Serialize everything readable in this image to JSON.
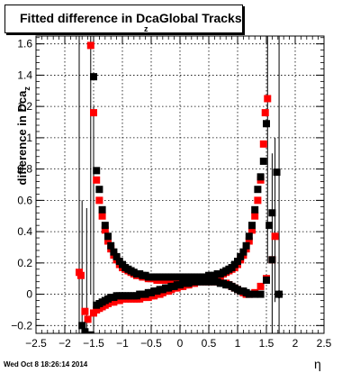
{
  "chart_data": {
    "type": "scatter",
    "title": "Fitted difference in Dca",
    "title_subscript": "z",
    "title_suffix": "Global Tracks",
    "ylabel": "difference in Dca",
    "ylabel_subscript": "z",
    "xlabel": "η",
    "xlim": [
      -2.5,
      2.5
    ],
    "ylim": [
      -0.25,
      1.65
    ],
    "grid": true,
    "x_ticks": [
      "−2.5",
      "−2",
      "−1.5",
      "−1",
      "−0.5",
      "0",
      "0.5",
      "1",
      "1.5",
      "2",
      "2.5"
    ],
    "y_ticks": [
      "−0.2",
      "0",
      "0.2",
      "0.4",
      "0.6",
      "0.8",
      "1",
      "1.2",
      "1.4",
      "1.6"
    ],
    "series": [
      {
        "color": "#ff0000",
        "marker": "square",
        "points": [
          [
            -1.75,
            0.14
          ],
          [
            -1.72,
            0.12
          ],
          [
            -1.65,
            -0.11
          ],
          [
            -1.6,
            -0.16
          ],
          [
            -1.55,
            1.59
          ],
          [
            -1.5,
            1.16
          ],
          [
            -1.45,
            0.73
          ],
          [
            -1.4,
            0.6
          ],
          [
            -1.35,
            0.5
          ],
          [
            -1.3,
            0.41
          ],
          [
            -1.25,
            0.34
          ],
          [
            -1.2,
            0.29
          ],
          [
            -1.15,
            0.25
          ],
          [
            -1.1,
            0.22
          ],
          [
            -1.05,
            0.19
          ],
          [
            -1.0,
            0.17
          ],
          [
            -0.95,
            0.16
          ],
          [
            -0.9,
            0.15
          ],
          [
            -0.85,
            0.14
          ],
          [
            -0.8,
            0.13
          ],
          [
            -0.75,
            0.12
          ],
          [
            -0.7,
            0.12
          ],
          [
            -0.65,
            0.11
          ],
          [
            -0.6,
            0.11
          ],
          [
            -0.55,
            0.1
          ],
          [
            -0.5,
            0.1
          ],
          [
            -0.45,
            0.1
          ],
          [
            -0.4,
            0.09
          ],
          [
            -0.35,
            0.09
          ],
          [
            -0.3,
            0.09
          ],
          [
            -0.25,
            0.09
          ],
          [
            -0.2,
            0.09
          ],
          [
            -0.15,
            0.09
          ],
          [
            -0.1,
            0.09
          ],
          [
            -0.05,
            0.09
          ],
          [
            0.0,
            0.09
          ],
          [
            0.05,
            0.09
          ],
          [
            0.1,
            0.09
          ],
          [
            0.15,
            0.09
          ],
          [
            0.2,
            0.09
          ],
          [
            0.25,
            0.09
          ],
          [
            0.3,
            0.09
          ],
          [
            0.35,
            0.09
          ],
          [
            0.4,
            0.09
          ],
          [
            0.45,
            0.09
          ],
          [
            0.5,
            0.1
          ],
          [
            0.55,
            0.1
          ],
          [
            0.6,
            0.11
          ],
          [
            0.65,
            0.11
          ],
          [
            0.7,
            0.12
          ],
          [
            0.75,
            0.13
          ],
          [
            0.8,
            0.14
          ],
          [
            0.85,
            0.15
          ],
          [
            0.9,
            0.16
          ],
          [
            0.95,
            0.17
          ],
          [
            1.0,
            0.19
          ],
          [
            1.05,
            0.22
          ],
          [
            1.1,
            0.25
          ],
          [
            1.15,
            0.29
          ],
          [
            1.2,
            0.34
          ],
          [
            1.25,
            0.41
          ],
          [
            1.3,
            0.5
          ],
          [
            1.35,
            0.6
          ],
          [
            1.4,
            0.73
          ],
          [
            1.45,
            0.96
          ],
          [
            1.48,
            1.16
          ],
          [
            1.52,
            1.25
          ],
          [
            -1.5,
            -0.12
          ],
          [
            -1.45,
            -0.1
          ],
          [
            -1.4,
            -0.09
          ],
          [
            -1.35,
            -0.08
          ],
          [
            -1.3,
            -0.07
          ],
          [
            -1.25,
            -0.06
          ],
          [
            -1.2,
            -0.05
          ],
          [
            -1.15,
            -0.05
          ],
          [
            -1.1,
            -0.04
          ],
          [
            -1.05,
            -0.04
          ],
          [
            -1.0,
            -0.03
          ],
          [
            -0.95,
            -0.03
          ],
          [
            -0.9,
            -0.03
          ],
          [
            -0.85,
            -0.03
          ],
          [
            -0.8,
            -0.03
          ],
          [
            -0.75,
            -0.03
          ],
          [
            -0.7,
            -0.03
          ],
          [
            -0.65,
            -0.02
          ],
          [
            -0.6,
            -0.02
          ],
          [
            -0.55,
            -0.02
          ],
          [
            -0.5,
            -0.01
          ],
          [
            -0.45,
            -0.01
          ],
          [
            -0.4,
            0.0
          ],
          [
            -0.35,
            0.0
          ],
          [
            -0.3,
            0.01
          ],
          [
            -0.25,
            0.02
          ],
          [
            -0.2,
            0.02
          ],
          [
            -0.15,
            0.03
          ],
          [
            -0.1,
            0.04
          ],
          [
            -0.05,
            0.04
          ],
          [
            0.0,
            0.05
          ],
          [
            0.05,
            0.05
          ],
          [
            0.1,
            0.06
          ],
          [
            0.15,
            0.06
          ],
          [
            0.2,
            0.07
          ],
          [
            0.25,
            0.07
          ],
          [
            0.3,
            0.08
          ],
          [
            0.35,
            0.08
          ],
          [
            0.4,
            0.08
          ],
          [
            0.45,
            0.08
          ],
          [
            0.5,
            0.08
          ],
          [
            0.55,
            0.08
          ],
          [
            0.6,
            0.08
          ],
          [
            0.65,
            0.08
          ],
          [
            0.7,
            0.08
          ],
          [
            0.75,
            0.07
          ],
          [
            0.8,
            0.07
          ],
          [
            0.85,
            0.06
          ],
          [
            0.9,
            0.05
          ],
          [
            0.95,
            0.04
          ],
          [
            1.0,
            0.03
          ],
          [
            1.05,
            0.02
          ],
          [
            1.1,
            0.01
          ],
          [
            1.15,
            0.0
          ],
          [
            1.2,
            0.0
          ],
          [
            1.3,
            0.01
          ],
          [
            1.4,
            0.05
          ],
          [
            1.5,
            0.1
          ],
          [
            1.6,
            0.22
          ],
          [
            1.65,
            0.37
          ]
        ]
      },
      {
        "color": "#000000",
        "marker": "square",
        "points": [
          [
            -1.7,
            -0.2
          ],
          [
            -1.65,
            -0.24
          ],
          [
            -1.55,
            -0.26
          ],
          [
            -1.5,
            1.39
          ],
          [
            -1.45,
            0.79
          ],
          [
            -1.4,
            0.67
          ],
          [
            -1.35,
            0.54
          ],
          [
            -1.3,
            0.44
          ],
          [
            -1.25,
            0.37
          ],
          [
            -1.2,
            0.31
          ],
          [
            -1.15,
            0.27
          ],
          [
            -1.1,
            0.24
          ],
          [
            -1.05,
            0.21
          ],
          [
            -1.0,
            0.19
          ],
          [
            -0.95,
            0.17
          ],
          [
            -0.9,
            0.16
          ],
          [
            -0.85,
            0.15
          ],
          [
            -0.8,
            0.14
          ],
          [
            -0.75,
            0.13
          ],
          [
            -0.7,
            0.13
          ],
          [
            -0.65,
            0.12
          ],
          [
            -0.6,
            0.12
          ],
          [
            -0.55,
            0.11
          ],
          [
            -0.5,
            0.11
          ],
          [
            -0.45,
            0.11
          ],
          [
            -0.4,
            0.11
          ],
          [
            -0.35,
            0.11
          ],
          [
            -0.3,
            0.11
          ],
          [
            -0.25,
            0.11
          ],
          [
            -0.2,
            0.11
          ],
          [
            -0.15,
            0.11
          ],
          [
            -0.1,
            0.11
          ],
          [
            -0.05,
            0.11
          ],
          [
            0.0,
            0.11
          ],
          [
            0.05,
            0.11
          ],
          [
            0.1,
            0.11
          ],
          [
            0.15,
            0.11
          ],
          [
            0.2,
            0.11
          ],
          [
            0.25,
            0.11
          ],
          [
            0.3,
            0.11
          ],
          [
            0.35,
            0.11
          ],
          [
            0.4,
            0.11
          ],
          [
            0.45,
            0.11
          ],
          [
            0.5,
            0.12
          ],
          [
            0.55,
            0.12
          ],
          [
            0.6,
            0.12
          ],
          [
            0.65,
            0.13
          ],
          [
            0.7,
            0.13
          ],
          [
            0.75,
            0.14
          ],
          [
            0.8,
            0.15
          ],
          [
            0.85,
            0.16
          ],
          [
            0.9,
            0.17
          ],
          [
            0.95,
            0.19
          ],
          [
            1.0,
            0.21
          ],
          [
            1.05,
            0.24
          ],
          [
            1.1,
            0.27
          ],
          [
            1.15,
            0.31
          ],
          [
            1.2,
            0.37
          ],
          [
            1.25,
            0.44
          ],
          [
            1.3,
            0.54
          ],
          [
            1.35,
            0.67
          ],
          [
            1.4,
            0.75
          ],
          [
            1.45,
            0.85
          ],
          [
            1.5,
            1.09
          ],
          [
            1.55,
            0.44
          ],
          [
            1.6,
            0.52
          ],
          [
            1.68,
            0.78
          ],
          [
            -1.45,
            -0.07
          ],
          [
            -1.4,
            -0.06
          ],
          [
            -1.35,
            -0.05
          ],
          [
            -1.3,
            -0.04
          ],
          [
            -1.25,
            -0.03
          ],
          [
            -1.2,
            -0.02
          ],
          [
            -1.15,
            -0.02
          ],
          [
            -1.1,
            -0.01
          ],
          [
            -1.05,
            -0.01
          ],
          [
            -1.0,
            -0.01
          ],
          [
            -0.95,
            -0.01
          ],
          [
            -0.9,
            -0.01
          ],
          [
            -0.85,
            -0.01
          ],
          [
            -0.8,
            -0.01
          ],
          [
            -0.75,
            -0.01
          ],
          [
            -0.7,
            0.0
          ],
          [
            -0.65,
            0.0
          ],
          [
            -0.6,
            0.0
          ],
          [
            -0.55,
            0.01
          ],
          [
            -0.5,
            0.01
          ],
          [
            -0.45,
            0.02
          ],
          [
            -0.4,
            0.02
          ],
          [
            -0.35,
            0.03
          ],
          [
            -0.3,
            0.03
          ],
          [
            -0.25,
            0.04
          ],
          [
            -0.2,
            0.04
          ],
          [
            -0.15,
            0.05
          ],
          [
            -0.1,
            0.05
          ],
          [
            -0.05,
            0.06
          ],
          [
            0.0,
            0.06
          ],
          [
            0.05,
            0.07
          ],
          [
            0.1,
            0.07
          ],
          [
            0.15,
            0.07
          ],
          [
            0.2,
            0.08
          ],
          [
            0.25,
            0.08
          ],
          [
            0.3,
            0.08
          ],
          [
            0.35,
            0.08
          ],
          [
            0.4,
            0.08
          ],
          [
            0.45,
            0.08
          ],
          [
            0.5,
            0.08
          ],
          [
            0.55,
            0.08
          ],
          [
            0.6,
            0.08
          ],
          [
            0.65,
            0.08
          ],
          [
            0.7,
            0.07
          ],
          [
            0.75,
            0.07
          ],
          [
            0.8,
            0.06
          ],
          [
            0.85,
            0.06
          ],
          [
            0.9,
            0.05
          ],
          [
            0.95,
            0.04
          ],
          [
            1.0,
            0.03
          ],
          [
            1.05,
            0.02
          ],
          [
            1.1,
            0.02
          ],
          [
            1.15,
            0.01
          ],
          [
            1.2,
            0.0
          ],
          [
            1.3,
            0.0
          ],
          [
            1.4,
            0.0
          ],
          [
            1.5,
            0.09
          ],
          [
            1.6,
            0.22
          ],
          [
            1.72,
            0.0
          ]
        ]
      }
    ],
    "error_bars": [
      [
        -1.75,
        -0.25,
        1.65
      ],
      [
        -1.7,
        -0.25,
        0.6
      ],
      [
        -1.62,
        -0.25,
        0.55
      ],
      [
        -1.55,
        0.0,
        1.65
      ],
      [
        -1.5,
        -0.2,
        1.2
      ],
      [
        1.52,
        0.2,
        1.65
      ],
      [
        1.6,
        -0.25,
        0.9
      ],
      [
        1.65,
        -0.05,
        1.0
      ],
      [
        1.72,
        -0.25,
        1.65
      ]
    ]
  },
  "footer": {
    "timestamp": "Wed Oct  8 18:26:14 2014"
  }
}
